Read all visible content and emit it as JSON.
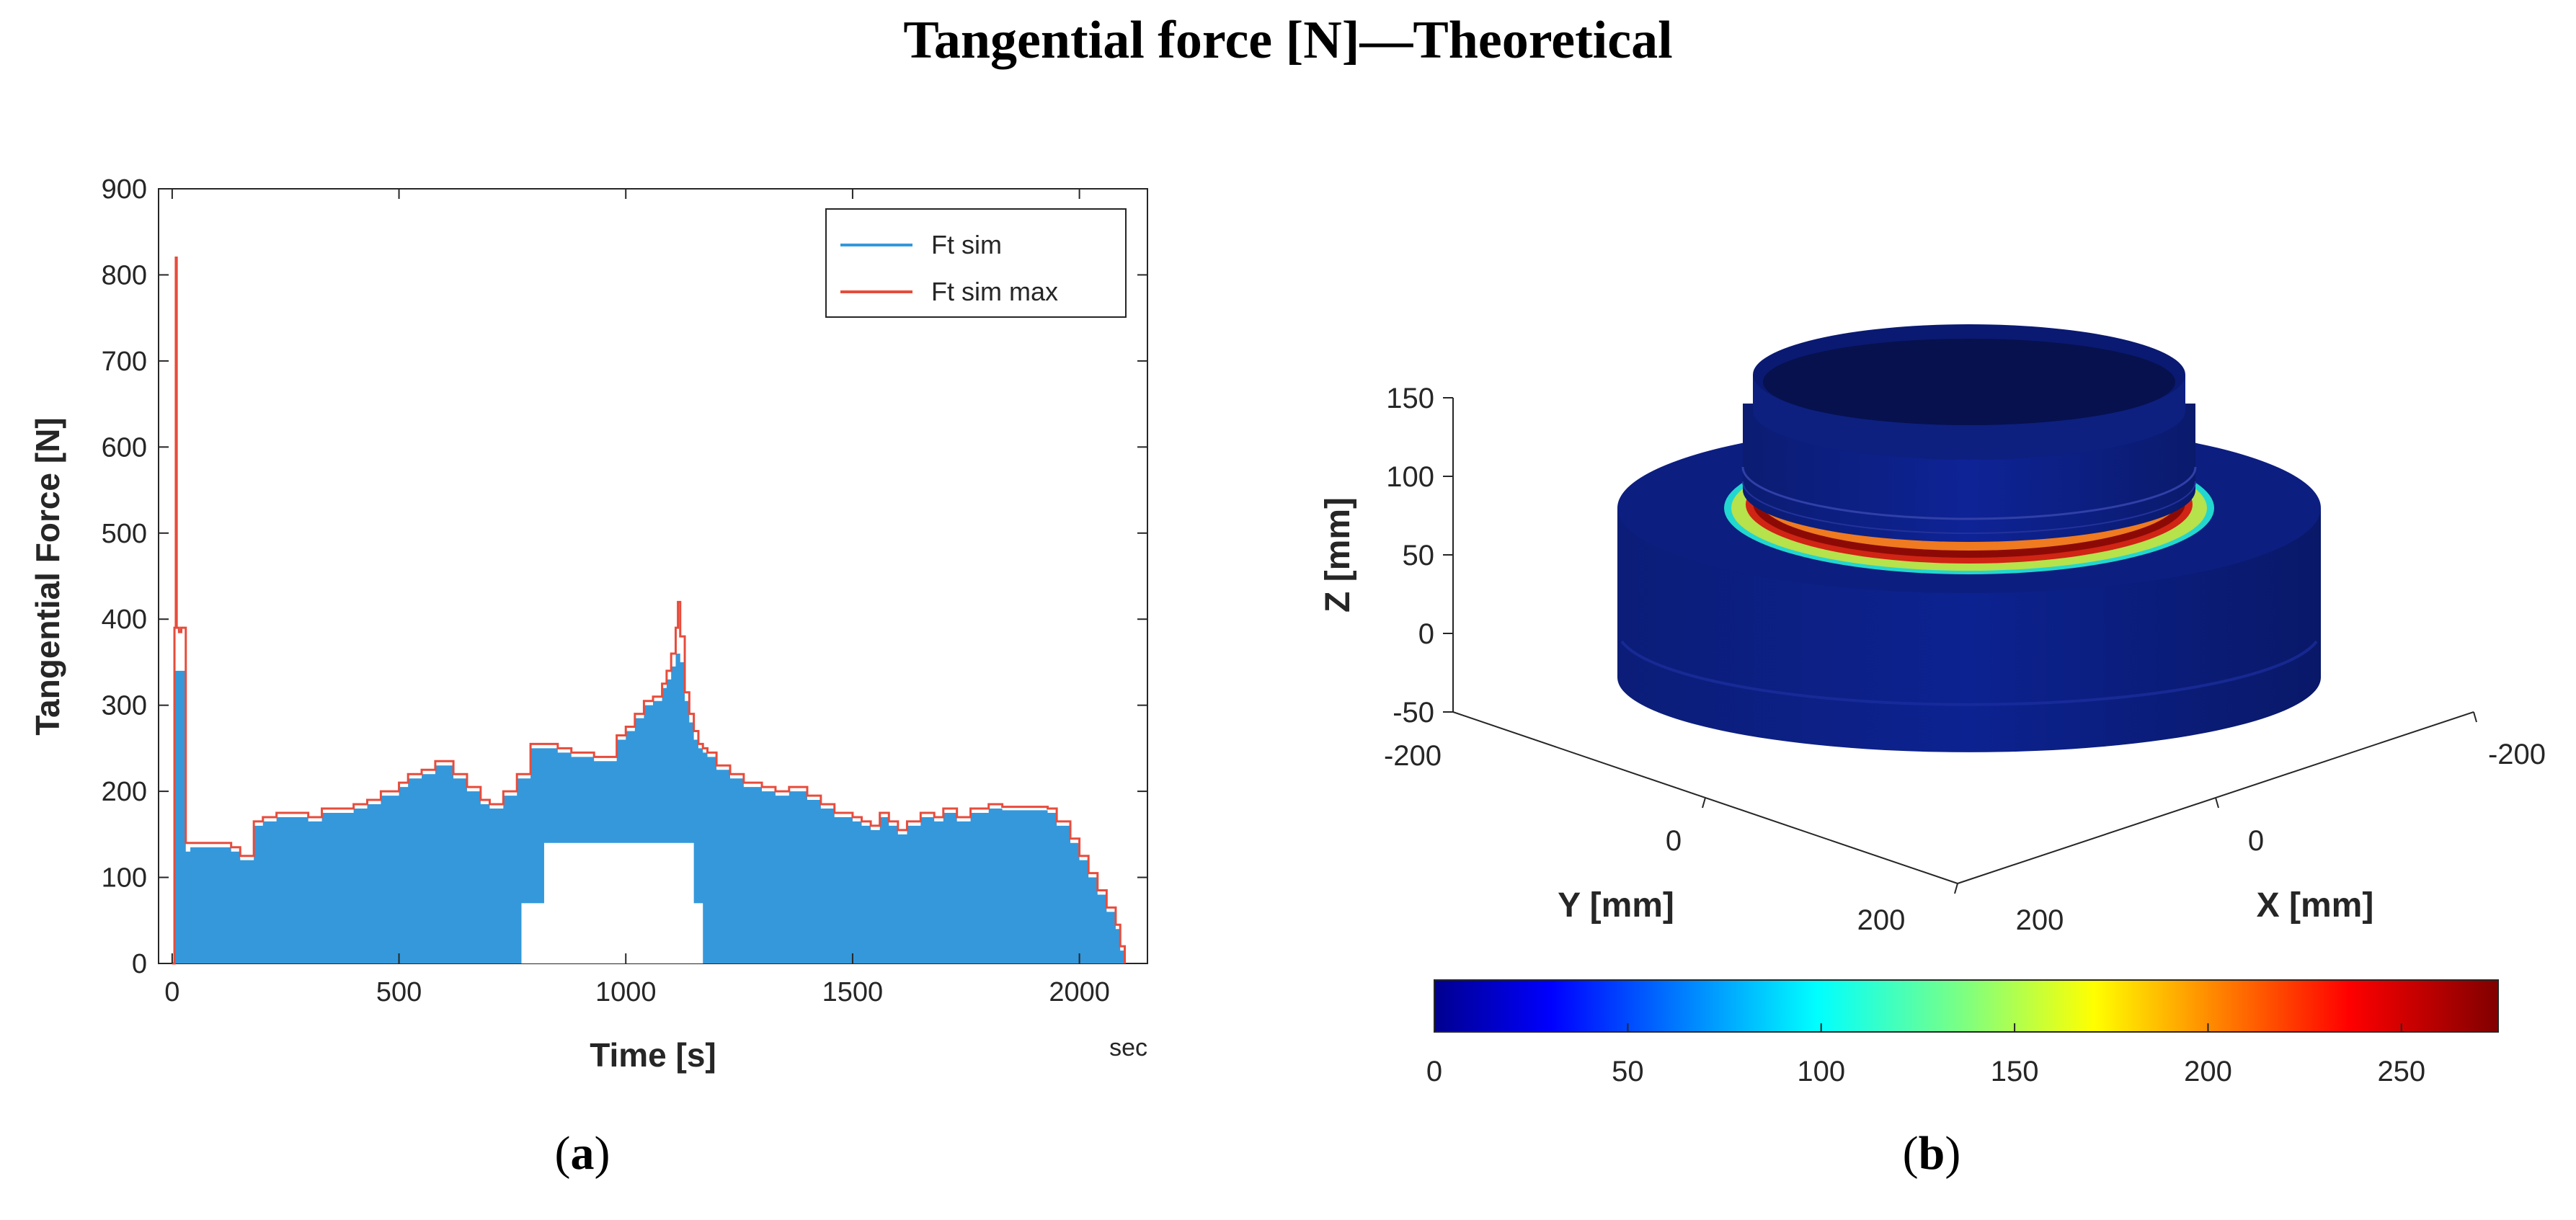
{
  "figure": {
    "title": "Tangential force [N]—Theoretical",
    "panel_a_caption": {
      "open": "(",
      "letter": "a",
      "close": ")"
    },
    "panel_b_caption": {
      "open": "(",
      "letter": "b",
      "close": ")"
    }
  },
  "chart_data": [
    {
      "type": "area",
      "panel": "a",
      "title": "",
      "xlabel": "Time [s]",
      "ylabel": "Tangential Force [N]",
      "x_unit_label": "sec",
      "xlim": [
        -30,
        2150
      ],
      "ylim": [
        0,
        900
      ],
      "x_ticks": [
        0,
        500,
        1000,
        1500,
        2000
      ],
      "y_ticks": [
        0,
        100,
        200,
        300,
        400,
        500,
        600,
        700,
        800,
        900
      ],
      "legend_position": "top-right",
      "legend": [
        "Ft sim",
        "Ft sim max"
      ],
      "series": [
        {
          "name": "Ft sim",
          "color": "#3498db",
          "style": "filled",
          "x": [
            0,
            5,
            10,
            30,
            40,
            60,
            100,
            130,
            150,
            180,
            200,
            230,
            260,
            300,
            330,
            360,
            400,
            430,
            460,
            500,
            520,
            550,
            580,
            620,
            650,
            680,
            700,
            730,
            760,
            790,
            820,
            850,
            880,
            900,
            930,
            960,
            980,
            1000,
            1020,
            1040,
            1060,
            1080,
            1090,
            1100,
            1110,
            1120,
            1130,
            1140,
            1150,
            1160,
            1170,
            1180,
            1200,
            1230,
            1260,
            1300,
            1330,
            1360,
            1400,
            1430,
            1460,
            1500,
            1520,
            1540,
            1560,
            1580,
            1600,
            1620,
            1650,
            1680,
            1700,
            1730,
            1760,
            1800,
            1830,
            1860,
            1900,
            1930,
            1950,
            1980,
            2000,
            2020,
            2040,
            2060,
            2080,
            2090,
            2100
          ],
          "y": [
            0,
            340,
            340,
            130,
            135,
            135,
            135,
            130,
            120,
            160,
            165,
            170,
            170,
            165,
            175,
            175,
            180,
            185,
            195,
            205,
            215,
            220,
            230,
            215,
            200,
            185,
            180,
            195,
            215,
            250,
            250,
            245,
            240,
            240,
            235,
            235,
            260,
            270,
            285,
            300,
            305,
            320,
            330,
            345,
            360,
            350,
            305,
            280,
            260,
            250,
            245,
            240,
            225,
            215,
            205,
            200,
            195,
            200,
            190,
            180,
            170,
            165,
            160,
            155,
            170,
            160,
            150,
            160,
            170,
            165,
            175,
            165,
            175,
            180,
            178,
            178,
            178,
            175,
            160,
            140,
            120,
            100,
            80,
            60,
            40,
            15,
            0
          ]
        },
        {
          "name": "Ft sim max",
          "color": "#e74c3c",
          "style": "line",
          "x": [
            0,
            5,
            8,
            10,
            15,
            20,
            30,
            40,
            60,
            100,
            130,
            150,
            180,
            200,
            230,
            260,
            300,
            330,
            360,
            400,
            430,
            460,
            500,
            520,
            550,
            580,
            620,
            650,
            680,
            700,
            730,
            760,
            790,
            820,
            850,
            880,
            900,
            930,
            960,
            980,
            1000,
            1020,
            1040,
            1060,
            1080,
            1090,
            1100,
            1110,
            1115,
            1120,
            1130,
            1140,
            1150,
            1160,
            1170,
            1180,
            1200,
            1230,
            1260,
            1300,
            1330,
            1360,
            1400,
            1430,
            1460,
            1500,
            1520,
            1540,
            1560,
            1580,
            1600,
            1620,
            1650,
            1680,
            1700,
            1730,
            1760,
            1800,
            1830,
            1860,
            1900,
            1930,
            1950,
            1980,
            2000,
            2020,
            2040,
            2060,
            2080,
            2090,
            2100
          ],
          "y": [
            0,
            390,
            820,
            390,
            385,
            390,
            140,
            140,
            140,
            140,
            135,
            125,
            165,
            170,
            175,
            175,
            170,
            180,
            180,
            185,
            190,
            200,
            210,
            220,
            225,
            235,
            220,
            205,
            190,
            185,
            200,
            220,
            255,
            255,
            250,
            245,
            245,
            240,
            240,
            265,
            275,
            290,
            305,
            310,
            325,
            340,
            360,
            390,
            420,
            380,
            315,
            290,
            270,
            255,
            250,
            245,
            230,
            220,
            210,
            205,
            200,
            205,
            195,
            185,
            175,
            170,
            165,
            160,
            175,
            165,
            155,
            165,
            175,
            170,
            180,
            170,
            180,
            185,
            182,
            182,
            182,
            180,
            165,
            145,
            125,
            105,
            85,
            65,
            45,
            20,
            0
          ]
        }
      ],
      "notch": {
        "x_start": 770,
        "x_end": 1170,
        "steps": [
          [
            770,
            70
          ],
          [
            820,
            140
          ],
          [
            1100,
            140
          ],
          [
            1150,
            70
          ],
          [
            1170,
            0
          ]
        ]
      }
    },
    {
      "type": "surface-3d",
      "panel": "b",
      "xlabel": "X [mm]",
      "ylabel": "Y [mm]",
      "zlabel": "Z [mm]",
      "x_ticks": [
        -200,
        0,
        200
      ],
      "y_ticks": [
        -200,
        0,
        200
      ],
      "z_ticks": [
        -50,
        0,
        50,
        100,
        150
      ],
      "colorbar": {
        "range": [
          0,
          275
        ],
        "ticks": [
          0,
          50,
          100,
          150,
          200,
          250
        ],
        "colormap": "jet",
        "orientation": "horizontal"
      },
      "palette": {
        "dark_blue": "#0b1c6e",
        "body_blue": "#0d2185",
        "ring_colors": [
          "#1fd6c9",
          "#a6e85a",
          "#f2e93a",
          "#ffff9a",
          "#e0301e",
          "#8c0000"
        ]
      }
    }
  ]
}
